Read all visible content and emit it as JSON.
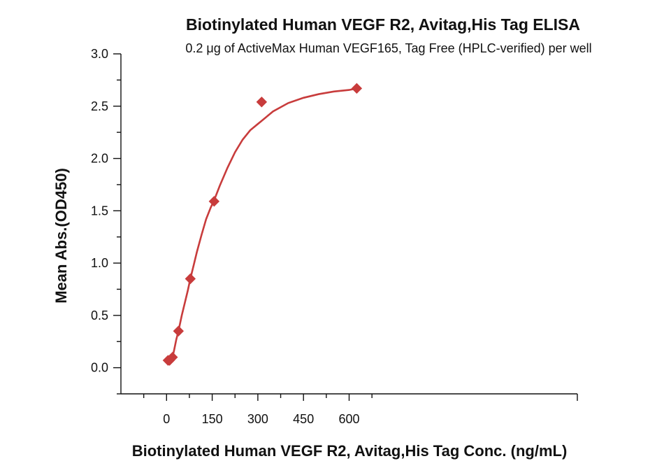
{
  "chart_data": {
    "type": "scatter",
    "title": "Biotinylated Human VEGF R2, Avitag,His Tag ELISA",
    "subtitle": "0.2 μg of ActiveMax Human VEGF165, Tag Free (HPLC-verified) per well",
    "xlabel": "Biotinylated Human VEGF R2, Avitag,His Tag Conc. (ng/mL)",
    "ylabel": "Mean Abs.(OD450)",
    "xlim": [
      -150,
      1350
    ],
    "ylim": [
      -0.25,
      3.0
    ],
    "x_ticks": [
      0,
      150,
      300,
      450,
      600
    ],
    "x_tick_labels": [
      "0",
      "150",
      "300",
      "450",
      "600"
    ],
    "y_ticks": [
      0.0,
      0.5,
      1.0,
      1.5,
      2.0,
      2.5,
      3.0
    ],
    "y_tick_labels": [
      "0.0",
      "0.5",
      "1.0",
      "1.5",
      "2.0",
      "2.5",
      "3.0"
    ],
    "grid": false,
    "series": [
      {
        "x": [
          4.88,
          9.77,
          19.53,
          39.06,
          78.13,
          156.25,
          312.5,
          625
        ],
        "y": [
          0.07,
          0.07,
          0.1,
          0.35,
          0.85,
          1.59,
          2.54,
          2.67
        ],
        "marker": "diamond",
        "fit": "4PL"
      }
    ],
    "fit_curve": {
      "x": [
        4.88,
        9.77,
        14.0,
        19.53,
        25,
        32,
        39.06,
        50,
        60,
        70,
        78.13,
        90,
        100,
        115,
        130,
        145,
        156.25,
        175,
        200,
        225,
        250,
        275,
        300,
        312.5,
        350,
        400,
        450,
        500,
        550,
        600,
        625
      ],
      "y": [
        0.07,
        0.07,
        0.082,
        0.1,
        0.17,
        0.27,
        0.35,
        0.5,
        0.62,
        0.74,
        0.85,
        0.99,
        1.11,
        1.27,
        1.42,
        1.53,
        1.6,
        1.74,
        1.91,
        2.06,
        2.18,
        2.27,
        2.33,
        2.36,
        2.45,
        2.53,
        2.58,
        2.615,
        2.64,
        2.655,
        2.67
      ]
    },
    "colors": {
      "series": "#c83c3c"
    }
  }
}
